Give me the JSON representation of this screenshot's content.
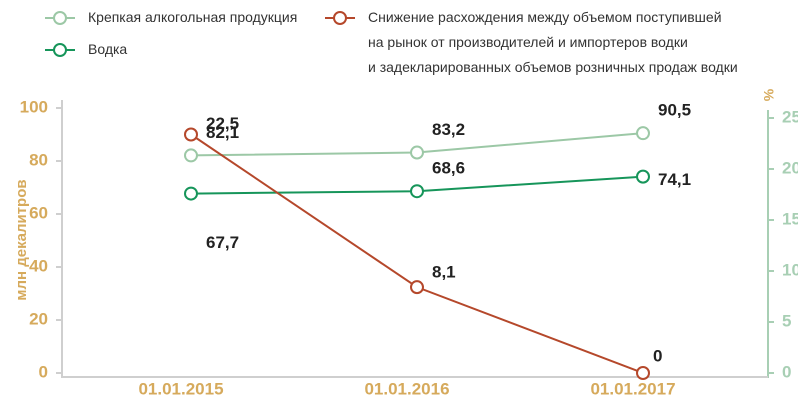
{
  "chart_data": {
    "type": "line",
    "categories": [
      "01.01.2015",
      "01.01.2016",
      "01.01.2017"
    ],
    "ylabel": "млн декалитров",
    "y2label": "%",
    "ylim": [
      0,
      100
    ],
    "yticks": [
      0,
      20,
      40,
      60,
      80,
      100
    ],
    "y2lim": [
      0,
      25
    ],
    "y2ticks": [
      0,
      5,
      10,
      15,
      20,
      25
    ],
    "series": [
      {
        "name": "Крепкая алкогольная продукция",
        "color": "#9cc8a6",
        "values": [
          82.1,
          83.2,
          90.5
        ],
        "value_labels": [
          "82,1",
          "83,2",
          "90,5"
        ]
      },
      {
        "name": "Водка",
        "color": "#16955a",
        "values": [
          67.7,
          68.6,
          74.1
        ],
        "value_labels": [
          "67,7",
          "68,6",
          "74,1"
        ]
      },
      {
        "name": "Снижение расхождения между объемом поступившей\nна рынок от производителей и импортеров водки\nи задекларированных объемов розничных продаж водки",
        "color": "#b5482b",
        "axis": "y2",
        "values": [
          22.5,
          8.1,
          0
        ],
        "value_labels": [
          "22,5",
          "8,1",
          "0"
        ]
      }
    ]
  }
}
